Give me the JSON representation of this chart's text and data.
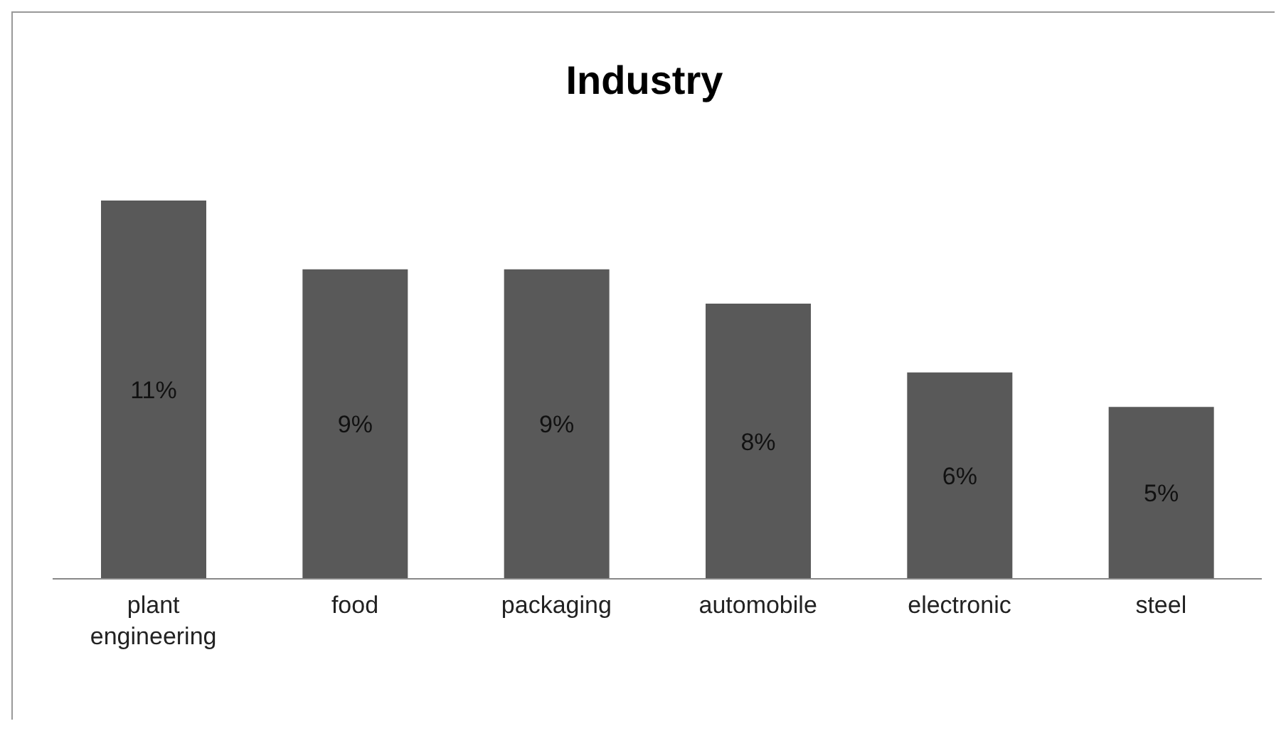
{
  "chart_data": {
    "type": "bar",
    "title": "Industry",
    "categories": [
      "plant engineering",
      "food",
      "packaging",
      "automobile",
      "electronic",
      "steel"
    ],
    "values": [
      11,
      9,
      9,
      8,
      6,
      5
    ],
    "color": "#595959",
    "value_labels": [
      "11%",
      "9%",
      "9%",
      "8%",
      "6%",
      "5%"
    ]
  }
}
